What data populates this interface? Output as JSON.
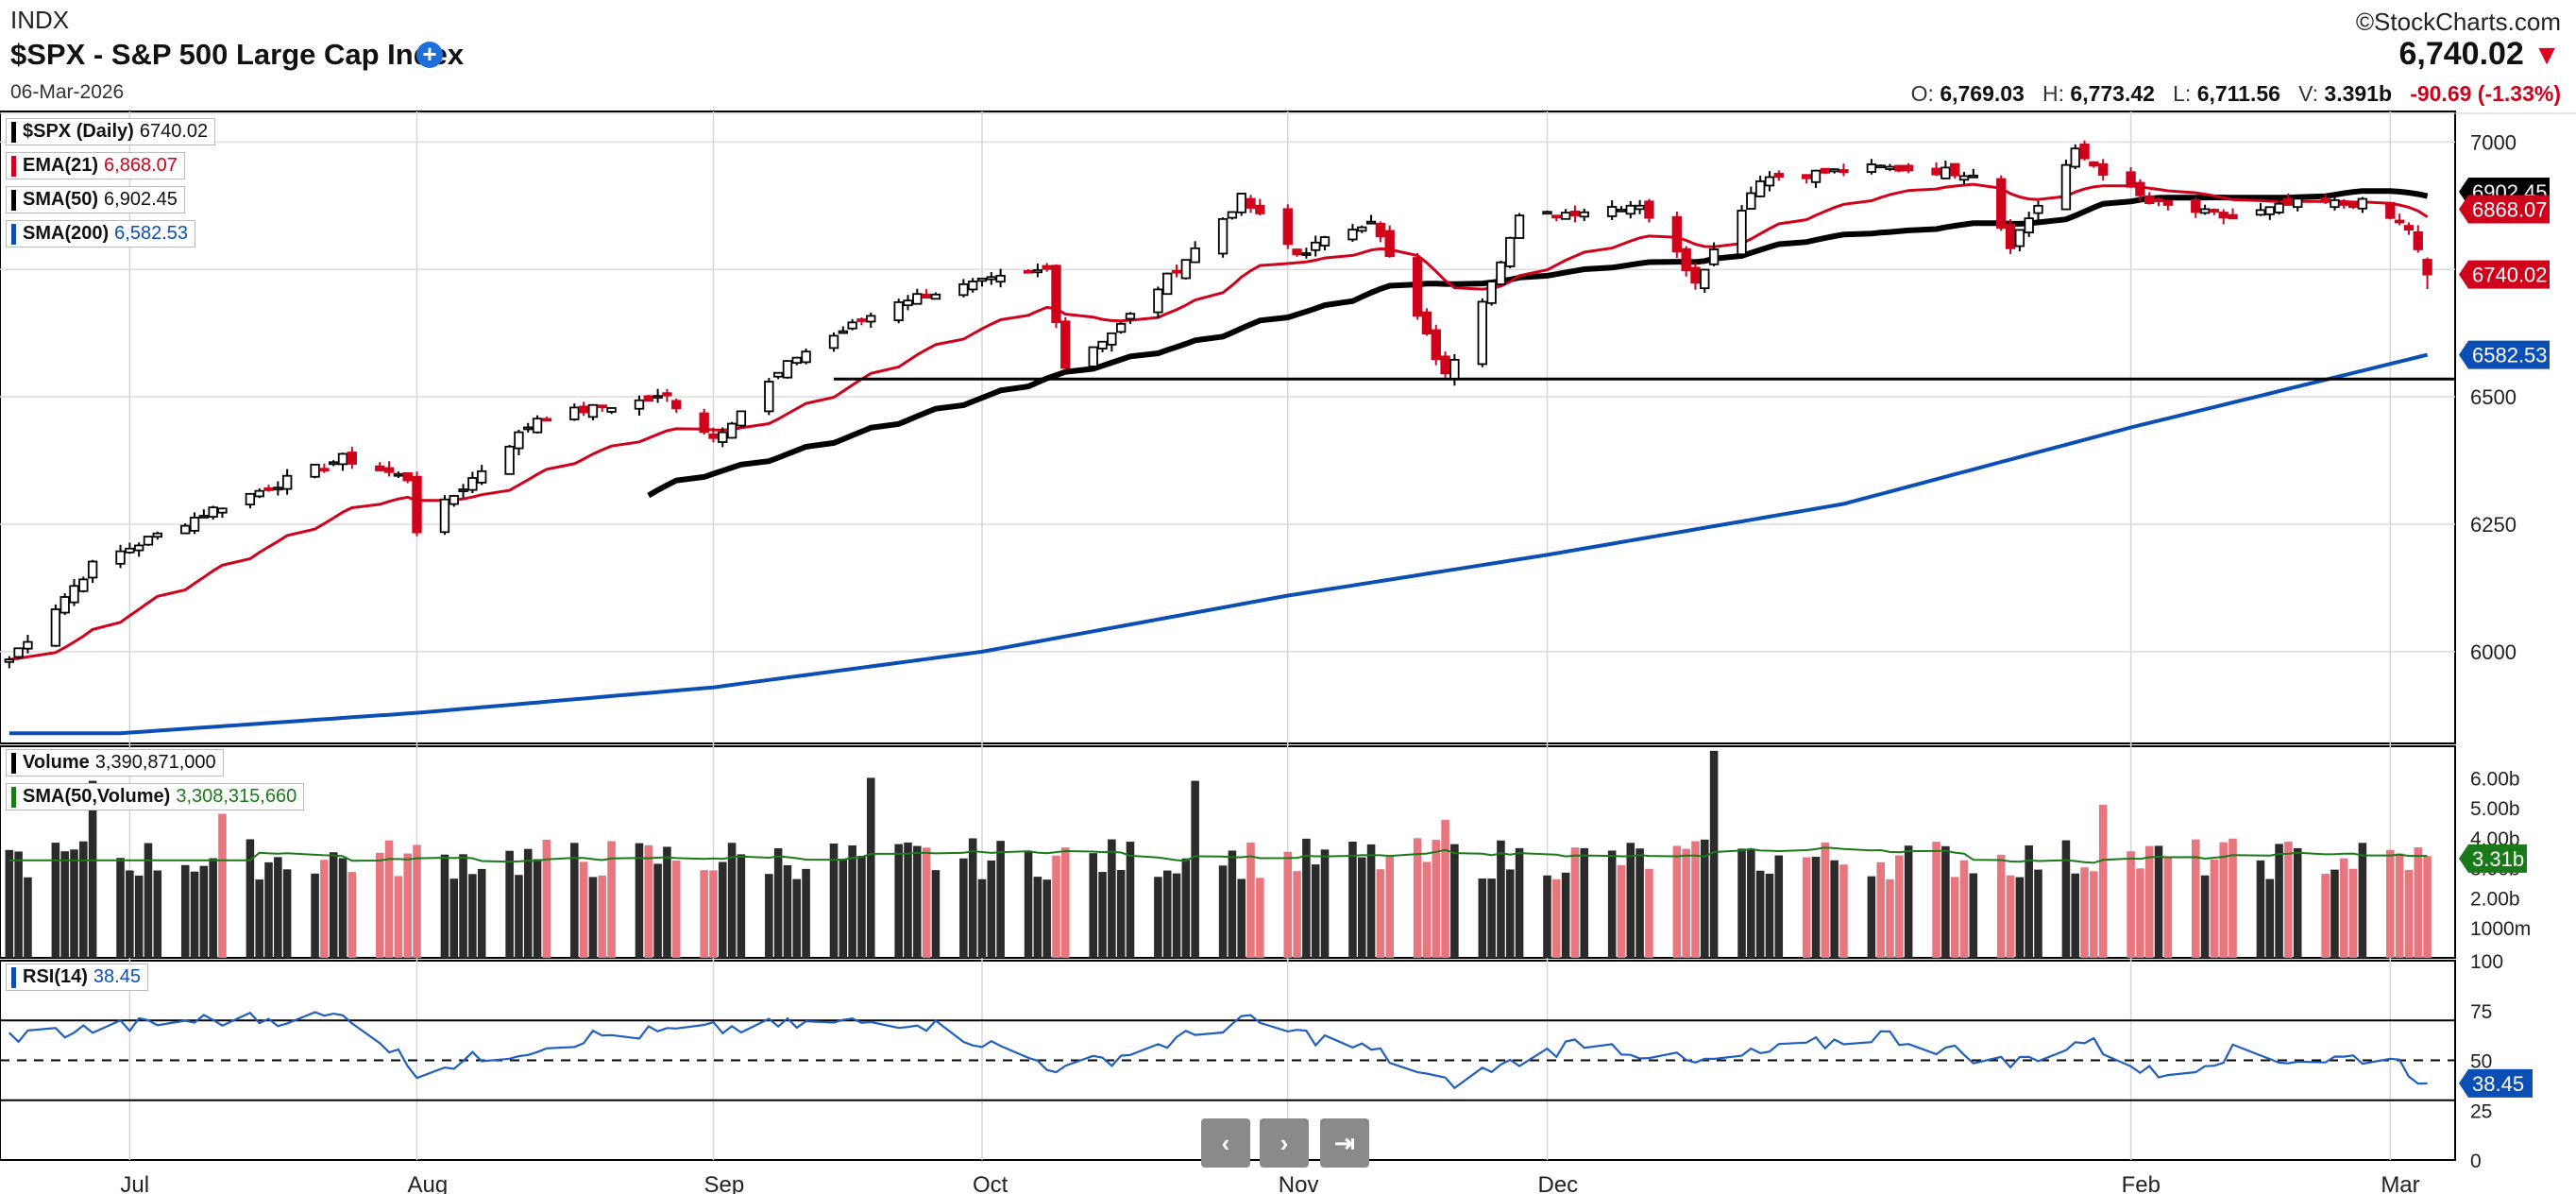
{
  "header": {
    "exchange": "INDX",
    "title": "$SPX - S&P 500 Large Cap Index",
    "plus_icon": "plus-circle-icon",
    "date": "06-Mar-2026",
    "brand": "©StockCharts.com",
    "last": "6,740.02",
    "arrow": "▼",
    "o_label": "O:",
    "open": "6,769.03",
    "h_label": "H:",
    "high": "6,773.42",
    "l_label": "L:",
    "low": "6,711.56",
    "v_label": "V:",
    "volume": "3.391b",
    "change": "-90.69 (-1.33%)"
  },
  "legends": {
    "price": {
      "name": "$SPX (Daily)",
      "value": "6740.02",
      "color": "#000000"
    },
    "ema21": {
      "name": "EMA(21)",
      "value": "6,868.07",
      "color": "#d0021b"
    },
    "sma50": {
      "name": "SMA(50)",
      "value": "6,902.45",
      "color": "#000000"
    },
    "sma200": {
      "name": "SMA(200)",
      "value": "6,582.53",
      "color": "#0b4fb4"
    },
    "vol": {
      "name": "Volume",
      "value": "3,390,871,000",
      "color": "#000000"
    },
    "volsma": {
      "name": "SMA(50,Volume)",
      "value": "3,308,315,660",
      "color": "#1a7a1a"
    },
    "rsi": {
      "name": "RSI(14)",
      "value": "38.45",
      "color": "#0b4fb4"
    }
  },
  "nav": {
    "prev_icon": "chevron-left-icon",
    "prev": "‹",
    "next_icon": "chevron-right-icon",
    "next": "›",
    "end_icon": "skip-to-end-icon",
    "end": "⇥"
  },
  "colors": {
    "up": "#000000",
    "down": "#d0021b",
    "vol_up": "#2b2b2b",
    "vol_down": "#e8767e",
    "ema": "#d0021b",
    "sma50": "#000000",
    "sma200": "#0b4fb4",
    "rsi": "#1f5fbf",
    "volsma": "#1a7a1a"
  },
  "chart_data": {
    "type": "candlestick",
    "symbol": "$SPX",
    "x_ticks": [
      {
        "label": "Jul",
        "date": "2025-07-01"
      },
      {
        "label": "Aug",
        "date": "2025-08-01"
      },
      {
        "label": "Sep",
        "date": "2025-09-02"
      },
      {
        "label": "Oct",
        "date": "2025-10-01"
      },
      {
        "label": "Nov",
        "date": "2025-11-03"
      },
      {
        "label": "Dec",
        "date": "2025-12-01"
      },
      {
        "label": "Feb",
        "date": "2026-02-02"
      },
      {
        "label": "Mar",
        "date": "2026-03-02"
      }
    ],
    "price": {
      "y_ticks": [
        6000,
        6250,
        6500,
        6750,
        7000
      ],
      "ylim": [
        5820,
        7060
      ],
      "support_level": 6535,
      "tags": {
        "ema21": "6868.07",
        "sma50": "6902.45",
        "close": "6740.02",
        "sma200": "6582.53"
      },
      "anchors": [
        [
          "2025-06-18",
          5985
        ],
        [
          "2025-06-27",
          6170
        ],
        [
          "2025-07-10",
          6280
        ],
        [
          "2025-07-24",
          6380
        ],
        [
          "2025-07-31",
          6340
        ],
        [
          "2025-08-01",
          6240
        ],
        [
          "2025-08-07",
          6340
        ],
        [
          "2025-08-14",
          6460
        ],
        [
          "2025-08-28",
          6500
        ],
        [
          "2025-09-02",
          6420
        ],
        [
          "2025-09-11",
          6580
        ],
        [
          "2025-09-22",
          6690
        ],
        [
          "2025-10-08",
          6750
        ],
        [
          "2025-10-10",
          6560
        ],
        [
          "2025-10-16",
          6640
        ],
        [
          "2025-10-24",
          6790
        ],
        [
          "2025-10-29",
          6890
        ],
        [
          "2025-11-04",
          6780
        ],
        [
          "2025-11-12",
          6850
        ],
        [
          "2025-11-20",
          6540
        ],
        [
          "2025-11-28",
          6850
        ],
        [
          "2025-12-11",
          6880
        ],
        [
          "2025-12-17",
          6730
        ],
        [
          "2025-12-24",
          6930
        ],
        [
          "2026-01-06",
          6950
        ],
        [
          "2026-01-16",
          6940
        ],
        [
          "2026-01-20",
          6800
        ],
        [
          "2026-01-27",
          6980
        ],
        [
          "2026-02-04",
          6880
        ],
        [
          "2026-02-13",
          6850
        ],
        [
          "2026-02-20",
          6880
        ],
        [
          "2026-02-27",
          6880
        ],
        [
          "2026-03-04",
          6830
        ],
        [
          "2026-03-06",
          6740
        ]
      ],
      "sma200_anchors": [
        [
          "2025-06-30",
          5840
        ],
        [
          "2025-08-01",
          5880
        ],
        [
          "2025-09-02",
          5930
        ],
        [
          "2025-10-01",
          6000
        ],
        [
          "2025-11-03",
          6110
        ],
        [
          "2025-12-01",
          6190
        ],
        [
          "2026-01-02",
          6290
        ],
        [
          "2026-02-02",
          6440
        ],
        [
          "2026-03-06",
          6582.53
        ]
      ]
    },
    "volume": {
      "y_ticks": [
        "1000m",
        "2.00b",
        "3.00b",
        "4.00b",
        "5.00b",
        "6.00b"
      ],
      "tag": "3.31b",
      "ylim_b": [
        0,
        6.8
      ],
      "spikes": [
        [
          "2025-06-27",
          5.9
        ],
        [
          "2025-07-11",
          4.8
        ],
        [
          "2025-09-19",
          6.0
        ],
        [
          "2025-10-24",
          5.9
        ],
        [
          "2025-11-20",
          4.6
        ],
        [
          "2025-12-19",
          6.9
        ],
        [
          "2026-01-30",
          5.1
        ]
      ]
    },
    "rsi": {
      "y_ticks": [
        0,
        25,
        50,
        75,
        100
      ],
      "tag": "38.45",
      "levels": [
        30,
        50,
        70
      ],
      "anchors": [
        [
          "2025-06-18",
          62
        ],
        [
          "2025-07-08",
          70
        ],
        [
          "2025-07-25",
          72
        ],
        [
          "2025-08-01",
          45
        ],
        [
          "2025-08-20",
          62
        ],
        [
          "2025-09-12",
          68
        ],
        [
          "2025-09-24",
          70
        ],
        [
          "2025-10-10",
          45
        ],
        [
          "2025-10-22",
          60
        ],
        [
          "2025-10-29",
          70
        ],
        [
          "2025-11-12",
          55
        ],
        [
          "2025-11-20",
          38
        ],
        [
          "2025-12-05",
          60
        ],
        [
          "2025-12-17",
          48
        ],
        [
          "2026-01-06",
          63
        ],
        [
          "2026-01-20",
          48
        ],
        [
          "2026-01-28",
          60
        ],
        [
          "2026-02-05",
          42
        ],
        [
          "2026-02-13",
          54
        ],
        [
          "2026-02-20",
          50
        ],
        [
          "2026-03-02",
          52
        ],
        [
          "2026-03-06",
          38.45
        ]
      ]
    }
  }
}
